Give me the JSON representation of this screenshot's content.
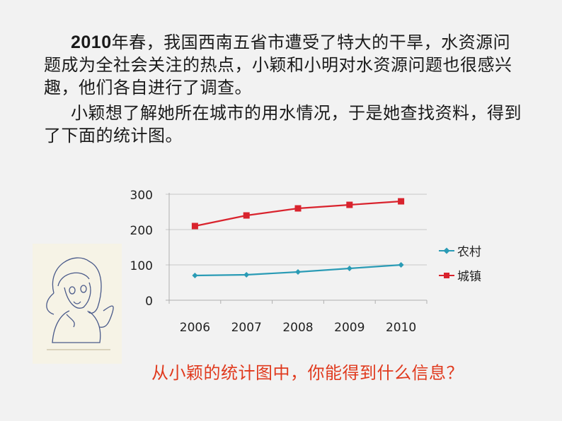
{
  "intro": {
    "paragraph1_year": "2010",
    "paragraph1_rest": "年春，我国西南五省市遭受了特大的干旱，水资源问题成为全社会关注的热点，小颖和小明对水资源问题也很感兴趣，他们各自进行了调查。",
    "paragraph2": "小颖想了解她所在城市的用水情况，于是她查找资料，得到了下面的统计图。"
  },
  "illustration": {
    "description": "girl-sketch"
  },
  "question": "从小颖的统计图中，你能得到什么信息？",
  "colors": {
    "background": "#f2f2f2",
    "rural": "#2a9bb5",
    "urban": "#d9232d",
    "question": "#e03a1e",
    "gridline": "#c8c8c8"
  },
  "chart_data": {
    "type": "line",
    "title": "",
    "xlabel": "",
    "ylabel": "",
    "categories": [
      "2006",
      "2007",
      "2008",
      "2009",
      "2010"
    ],
    "series": [
      {
        "name": "农村",
        "marker": "diamond",
        "color": "#2a9bb5",
        "values": [
          70,
          72,
          80,
          90,
          100
        ]
      },
      {
        "name": "城镇",
        "marker": "square",
        "color": "#d9232d",
        "values": [
          210,
          240,
          260,
          270,
          280
        ]
      }
    ],
    "yticks": [
      0,
      100,
      200,
      300
    ],
    "ylim": [
      0,
      300
    ],
    "grid": true,
    "legend_position": "right"
  }
}
